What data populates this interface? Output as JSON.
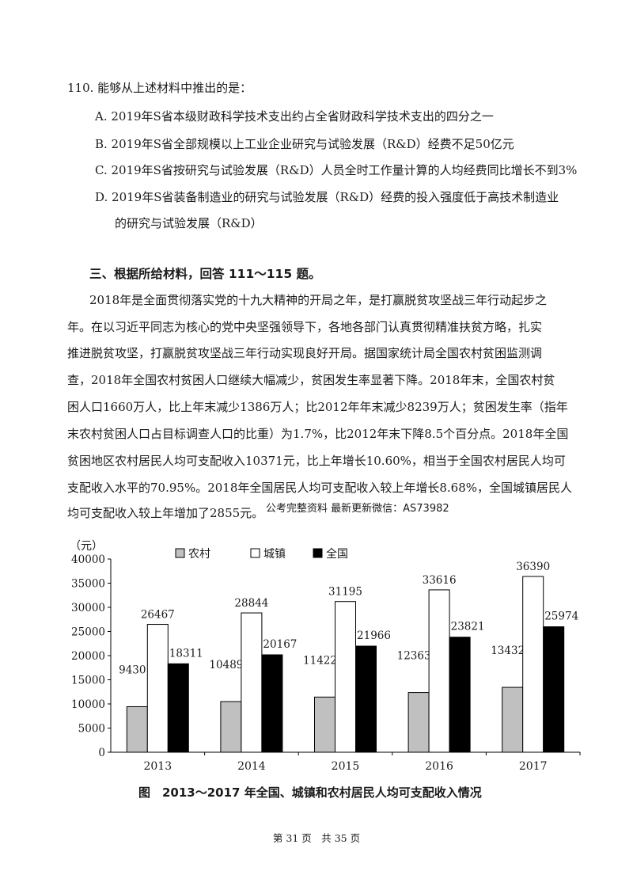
{
  "question": {
    "stem": "110. 能够从上述材料中推出的是：",
    "options": {
      "A": "A. 2019年S省本级财政科学技术支出约占全省财政科学技术支出的四分之一",
      "B": "B. 2019年S省全部规模以上工业企业研究与试验发展（R&D）经费不足50亿元",
      "C": "C. 2019年S省按研究与试验发展（R&D）人员全时工作量计算的人均经费同比增长不到3%",
      "D_line1": "D. 2019年S省装备制造业的研究与试验发展（R&D）经费的投入强度低于高技术制造业",
      "D_line2": "的研究与试验发展（R&D）"
    }
  },
  "section": {
    "title": "三、根据所给材料，回答 111～115 题。",
    "paragraph_lines": [
      "2018年是全面贯彻落实党的十九大精神的开局之年，是打赢脱贫攻坚战三年行动起步之",
      "年。在以习近平同志为核心的党中央坚强领导下，各地各部门认真贯彻精准扶贫方略，扎实",
      "推进脱贫攻坚，打赢脱贫攻坚战三年行动实现良好开局。据国家统计局全国农村贫困监测调",
      "查，2018年全国农村贫困人口继续大幅减少，贫困发生率显著下降。2018年末，全国农村贫",
      "困人口1660万人，比上年末减少1386万人；比2012年年末减少8239万人；贫困发生率（指年",
      "末农村贫困人口占目标调查人口的比重）为1.7%，比2012年末下降8.5个百分点。2018年全国",
      "贫困地区农村居民人均可支配收入10371元，比上年增长10.60%，相当于全国农村居民人均可",
      "支配收入水平的70.95%。2018年全国居民人均可支配收入较上年增长8.68%，全国城镇居民人",
      "均可支配收入较上年增加了2855元。"
    ],
    "watermark": "公考完整资料 最新更新微信：AS73982"
  },
  "chart_data": {
    "type": "bar",
    "title": "",
    "ylabel": "（元）",
    "xlabel": "",
    "ylim": [
      0,
      40000
    ],
    "yticks": [
      0,
      5000,
      10000,
      15000,
      20000,
      25000,
      30000,
      35000,
      40000
    ],
    "categories": [
      "2013",
      "2014",
      "2015",
      "2016",
      "2017"
    ],
    "series": [
      {
        "name": "农村",
        "color": "#c0c0c0",
        "values": [
          9430,
          10489,
          11422,
          12363,
          13432
        ]
      },
      {
        "name": "城镇",
        "color": "#ffffff",
        "values": [
          26467,
          28844,
          31195,
          33616,
          36390
        ]
      },
      {
        "name": "全国",
        "color": "#000000",
        "values": [
          18311,
          20167,
          21966,
          23821,
          25974
        ]
      }
    ],
    "legend_position": "top"
  },
  "caption": "图　2013～2017 年全国、城镇和农村居民人均可支配收入情况",
  "footer": "第 31 页　共 35 页"
}
